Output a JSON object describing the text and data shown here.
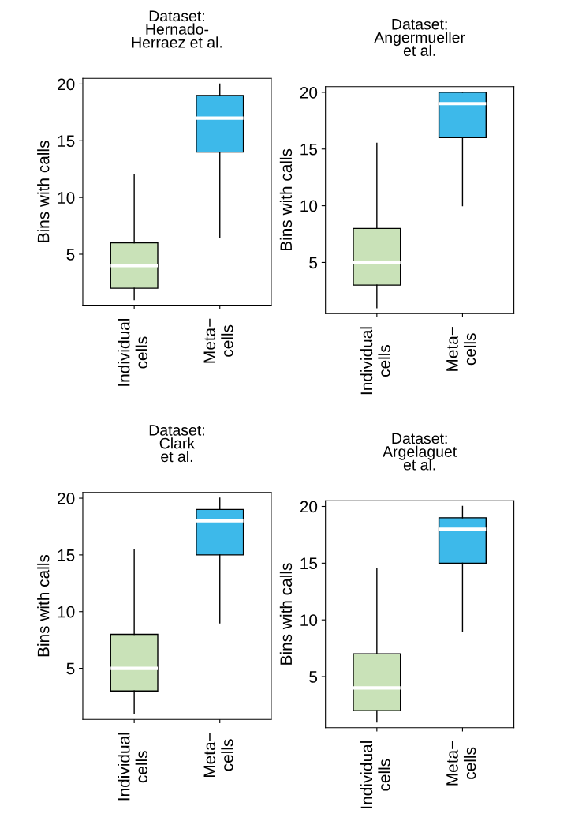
{
  "chart_data": [
    {
      "type": "box",
      "title": "Dataset:\nHernado-\nHerraez et al.",
      "ylabel": "Bins with calls",
      "categories": [
        "Individual\ncells",
        "Meta−\ncells"
      ],
      "colors": [
        "#c9e2b8",
        "#3db9ea"
      ],
      "ylim": [
        0.5,
        20.5
      ],
      "yticks": [
        5,
        10,
        15,
        20
      ],
      "boxes": [
        {
          "low": 1,
          "q1": 2,
          "median": 4,
          "q3": 6,
          "high": 12
        },
        {
          "low": 6.5,
          "q1": 14,
          "median": 17,
          "q3": 19,
          "high": 20
        }
      ]
    },
    {
      "type": "box",
      "title": "Dataset:\nAngermueller\net al.",
      "ylabel": "Bins with calls",
      "categories": [
        "Individual\ncells",
        "Meta−\ncells"
      ],
      "colors": [
        "#c9e2b8",
        "#3db9ea"
      ],
      "ylim": [
        0.5,
        20.5
      ],
      "yticks": [
        5,
        10,
        15,
        20
      ],
      "boxes": [
        {
          "low": 1,
          "q1": 3,
          "median": 5,
          "q3": 8,
          "high": 15.5
        },
        {
          "low": 10,
          "q1": 16,
          "median": 19,
          "q3": 20,
          "high": 20
        }
      ]
    },
    {
      "type": "box",
      "title": "Dataset:\nClark\net al.",
      "ylabel": "Bins with calls",
      "categories": [
        "Individual\ncells",
        "Meta−\ncells"
      ],
      "colors": [
        "#c9e2b8",
        "#3db9ea"
      ],
      "ylim": [
        0.5,
        20.5
      ],
      "yticks": [
        5,
        10,
        15,
        20
      ],
      "boxes": [
        {
          "low": 1,
          "q1": 3,
          "median": 5,
          "q3": 8,
          "high": 15.5
        },
        {
          "low": 9,
          "q1": 15,
          "median": 18,
          "q3": 19,
          "high": 20
        }
      ]
    },
    {
      "type": "box",
      "title": "Dataset:\nArgelaguet\net al.",
      "ylabel": "Bins with calls",
      "categories": [
        "Individual\ncells",
        "Meta−\ncells"
      ],
      "colors": [
        "#c9e2b8",
        "#3db9ea"
      ],
      "ylim": [
        0.5,
        20.5
      ],
      "yticks": [
        5,
        10,
        15,
        20
      ],
      "boxes": [
        {
          "low": 1,
          "q1": 2,
          "median": 4,
          "q3": 7,
          "high": 14.5
        },
        {
          "low": 9,
          "q1": 15,
          "median": 18,
          "q3": 19,
          "high": 20
        }
      ]
    }
  ]
}
